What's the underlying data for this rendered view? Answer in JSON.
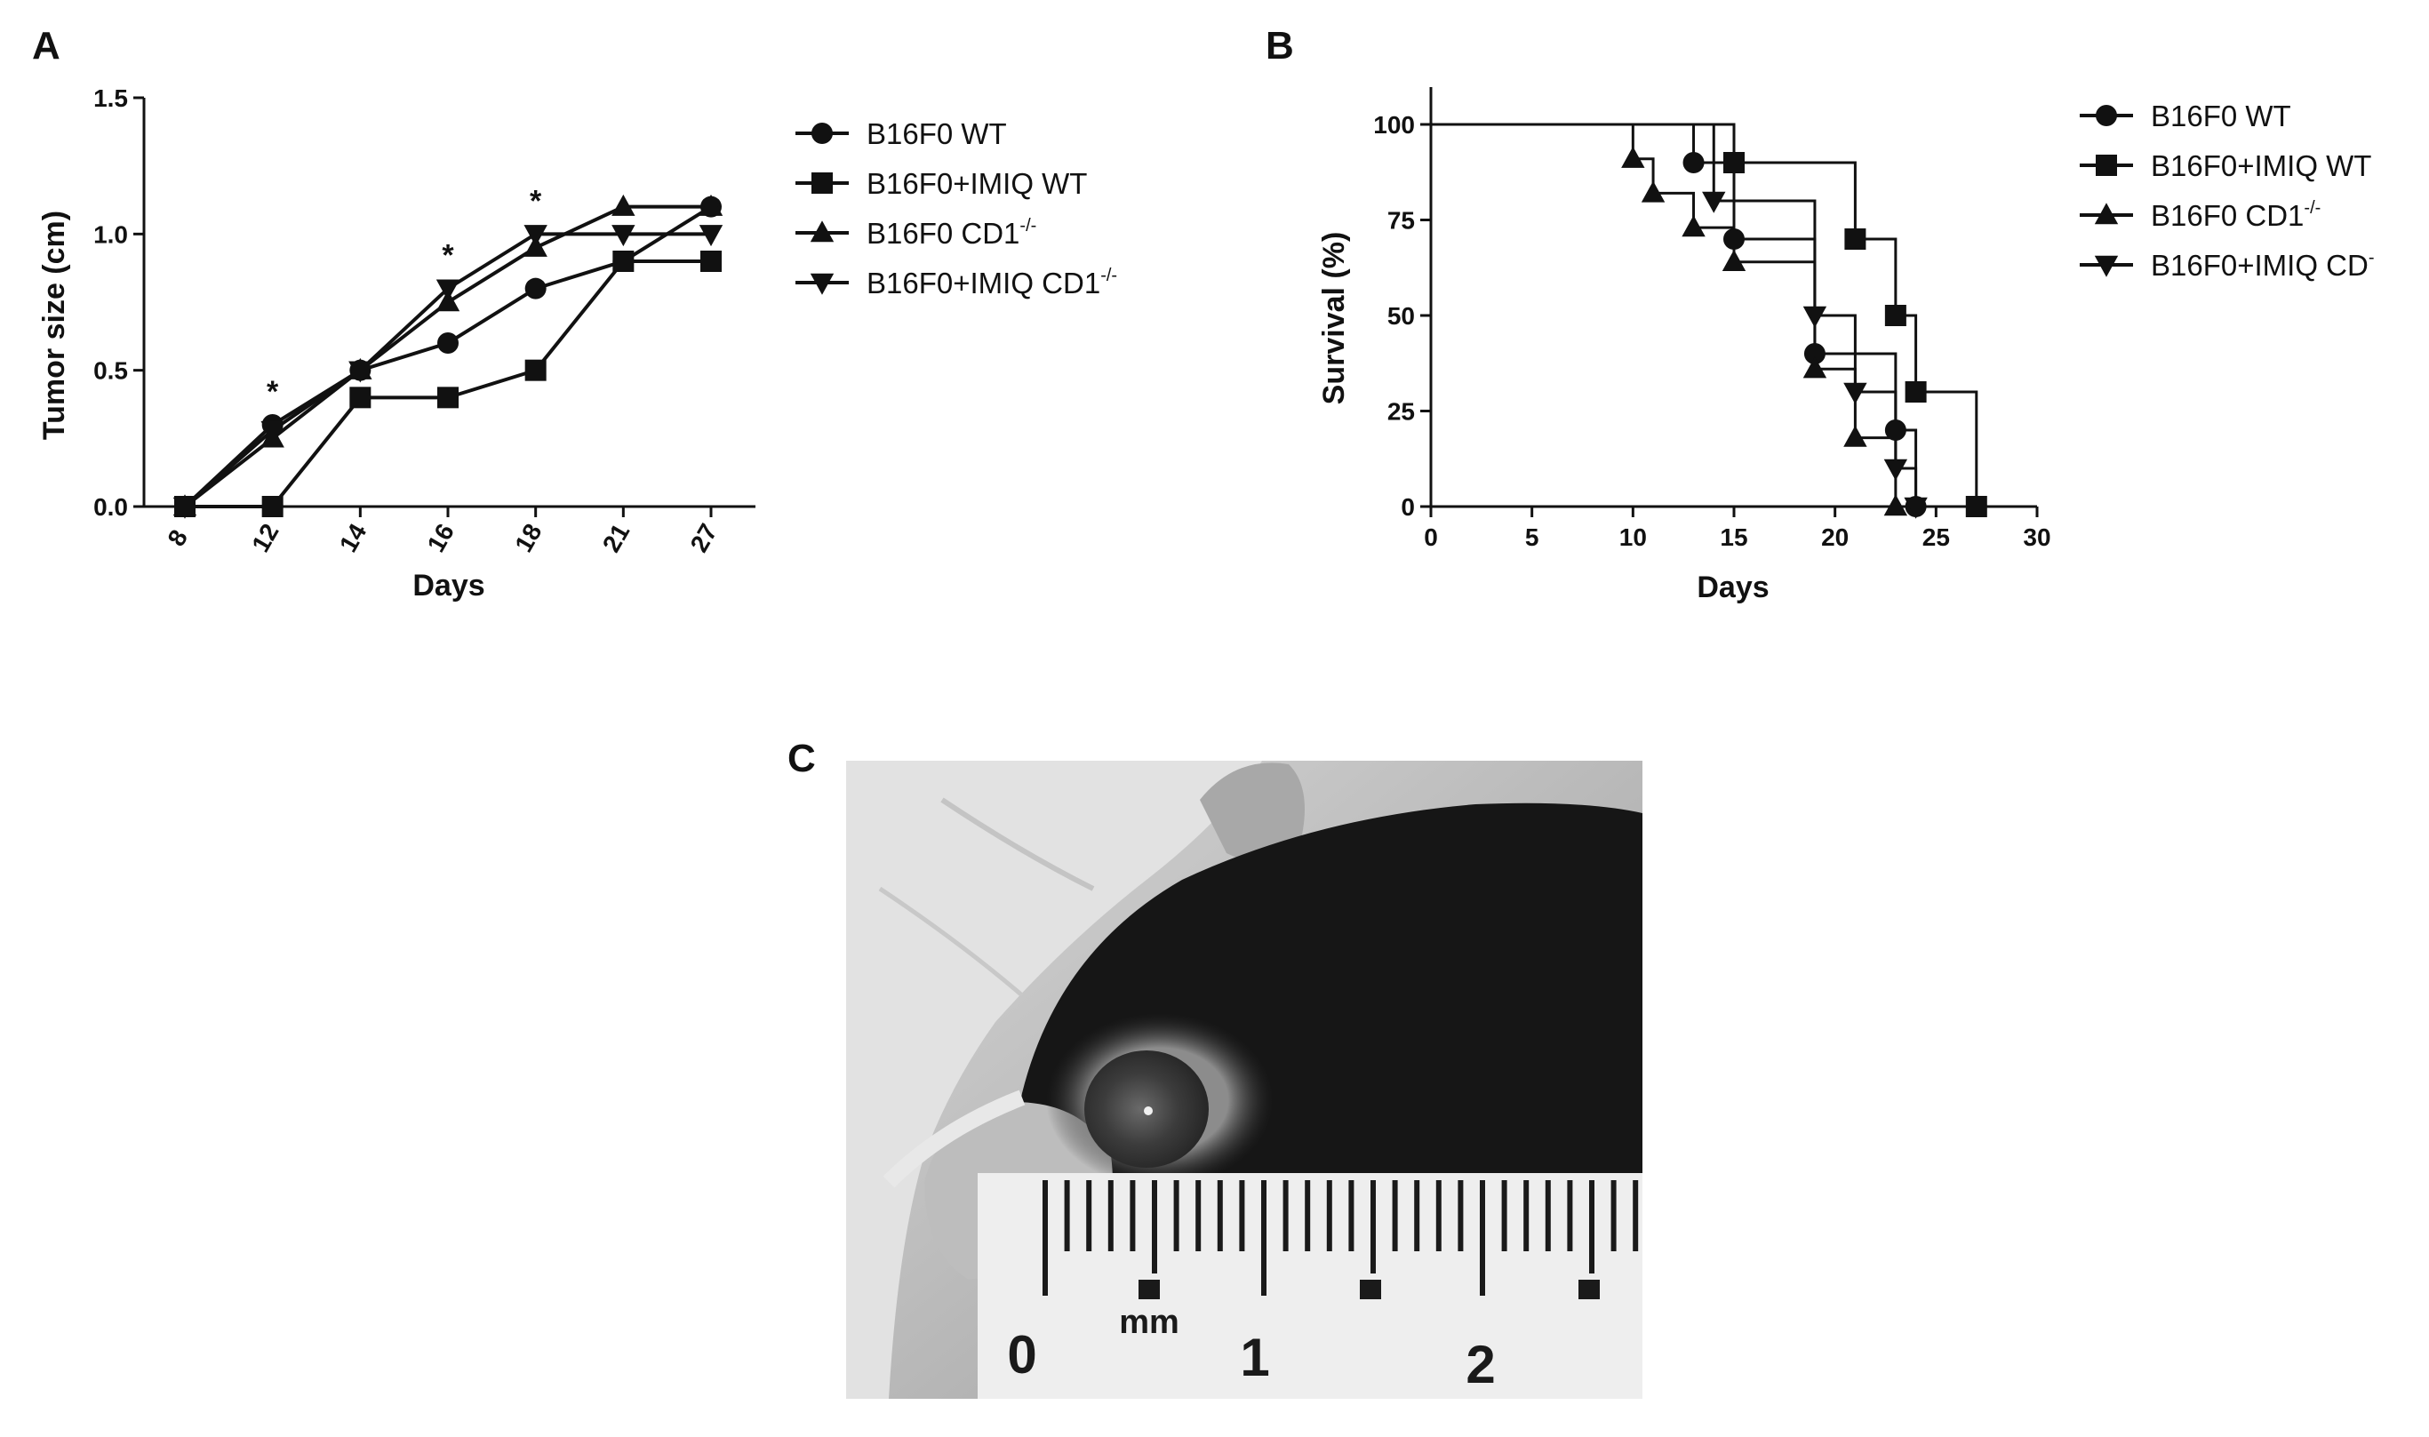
{
  "panels": {
    "a": "A",
    "b": "B",
    "c": "C"
  },
  "chart_data": [
    {
      "type": "line",
      "panel": "A",
      "xlabel": "Days",
      "ylabel": "Tumor size  (cm)",
      "categories": [
        "8",
        "12",
        "14",
        "16",
        "18",
        "21",
        "27"
      ],
      "ylim": [
        0,
        1.5
      ],
      "yticks": [
        "0.0",
        "0.5",
        "1.0",
        "1.5"
      ],
      "significance": [
        {
          "category": "12",
          "label": "*"
        },
        {
          "category": "16",
          "label": "*"
        },
        {
          "category": "18",
          "label": "*"
        }
      ],
      "series": [
        {
          "name": "B16F0 WT",
          "marker": "circle",
          "values": [
            0,
            0.3,
            0.5,
            0.6,
            0.8,
            0.9,
            1.1
          ]
        },
        {
          "name": "B16F0+IMIQ WT",
          "marker": "square",
          "values": [
            0,
            0,
            0.4,
            0.4,
            0.5,
            0.9,
            0.9
          ]
        },
        {
          "name": "B16F0 CD1",
          "name_sup": "-/-",
          "marker": "triangle-up",
          "values": [
            0,
            0.25,
            0.5,
            0.75,
            0.95,
            1.1,
            1.1
          ]
        },
        {
          "name": "B16F0+IMIQ CD1",
          "name_sup": "-/-",
          "marker": "triangle-down",
          "values": [
            0,
            0.28,
            0.5,
            0.8,
            1.0,
            1.0,
            1.0
          ]
        }
      ]
    },
    {
      "type": "line",
      "step": true,
      "panel": "B",
      "xlabel": "Days",
      "ylabel": "Survival (%)",
      "xlim": [
        0,
        30
      ],
      "ylim": [
        0,
        100
      ],
      "xticks": [
        "0",
        "5",
        "10",
        "15",
        "20",
        "25",
        "30"
      ],
      "yticks": [
        "0",
        "25",
        "50",
        "75",
        "100"
      ],
      "series": [
        {
          "name": "B16F0 WT",
          "marker": "circle",
          "x": [
            0,
            13,
            15,
            19,
            23,
            24
          ],
          "y": [
            100,
            90,
            70,
            40,
            20,
            0
          ]
        },
        {
          "name": "B16F0+IMIQ WT",
          "marker": "square",
          "x": [
            0,
            15,
            21,
            23,
            24,
            27
          ],
          "y": [
            100,
            90,
            70,
            50,
            30,
            0
          ]
        },
        {
          "name": "B16F0 CD1",
          "name_sup": "-/-",
          "marker": "triangle-up",
          "x": [
            0,
            10,
            11,
            13,
            15,
            19,
            21,
            23
          ],
          "y": [
            100,
            91,
            82,
            73,
            64,
            36,
            18,
            0
          ]
        },
        {
          "name": "B16F0+IMIQ CD",
          "name_sup": "-",
          "marker": "triangle-down",
          "x": [
            0,
            14,
            19,
            21,
            23,
            24
          ],
          "y": [
            100,
            80,
            50,
            30,
            10,
            0
          ]
        }
      ]
    }
  ],
  "photo": {
    "ruler_numbers": [
      "0",
      "1",
      "2"
    ],
    "ruler_unit": "mm"
  }
}
